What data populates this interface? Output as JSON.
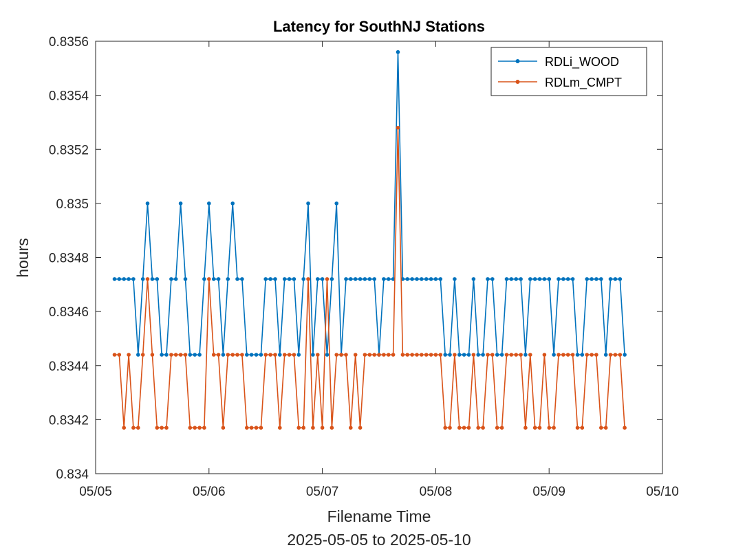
{
  "chart_data": {
    "type": "line",
    "title": "Latency for SouthNJ Stations",
    "xlabel": "Filename Time",
    "xlabel_sub": "2025-05-05 to 2025-05-10",
    "ylabel": "hours",
    "xlim": [
      0,
      5
    ],
    "ylim": [
      0.834,
      0.8356
    ],
    "x_ticks": [
      0,
      1,
      2,
      3,
      4,
      5
    ],
    "x_tick_labels": [
      "05/05",
      "05/06",
      "05/07",
      "05/08",
      "05/09",
      "05/10"
    ],
    "y_ticks": [
      0.834,
      0.8342,
      0.8344,
      0.8346,
      0.8348,
      0.835,
      0.8352,
      0.8354,
      0.8356
    ],
    "y_tick_labels": [
      "0.834",
      "0.8342",
      "0.8344",
      "0.8346",
      "0.8348",
      "0.835",
      "0.8352",
      "0.8354",
      "0.8356"
    ],
    "x_start": 0.1667,
    "x_step": 0.04167,
    "grid": false,
    "legend_position": "top-right",
    "series": [
      {
        "name": "RDLi_WOOD",
        "color": "#0072BD",
        "values": [
          0.83472,
          0.83472,
          0.83472,
          0.83472,
          0.83472,
          0.83444,
          0.83472,
          0.835,
          0.83472,
          0.83472,
          0.83444,
          0.83444,
          0.83472,
          0.83472,
          0.835,
          0.83472,
          0.83444,
          0.83444,
          0.83444,
          0.83472,
          0.835,
          0.83472,
          0.83472,
          0.83444,
          0.83472,
          0.835,
          0.83472,
          0.83472,
          0.83444,
          0.83444,
          0.83444,
          0.83444,
          0.83472,
          0.83472,
          0.83472,
          0.83444,
          0.83472,
          0.83472,
          0.83472,
          0.83444,
          0.83472,
          0.835,
          0.83444,
          0.83472,
          0.83472,
          0.83444,
          0.83472,
          0.835,
          0.83444,
          0.83472,
          0.83472,
          0.83472,
          0.83472,
          0.83472,
          0.83472,
          0.83472,
          0.83444,
          0.83472,
          0.83472,
          0.83472,
          0.83556,
          0.83472,
          0.83472,
          0.83472,
          0.83472,
          0.83472,
          0.83472,
          0.83472,
          0.83472,
          0.83472,
          0.83444,
          0.83444,
          0.83472,
          0.83444,
          0.83444,
          0.83444,
          0.83472,
          0.83444,
          0.83444,
          0.83472,
          0.83472,
          0.83444,
          0.83444,
          0.83472,
          0.83472,
          0.83472,
          0.83472,
          0.83444,
          0.83472,
          0.83472,
          0.83472,
          0.83472,
          0.83472,
          0.83444,
          0.83472,
          0.83472,
          0.83472,
          0.83472,
          0.83444,
          0.83444,
          0.83472,
          0.83472,
          0.83472,
          0.83472,
          0.83444,
          0.83472,
          0.83472,
          0.83472,
          0.83444
        ]
      },
      {
        "name": "RDLm_CMPT",
        "color": "#D95319",
        "values": [
          0.83444,
          0.83444,
          0.83417,
          0.83444,
          0.83417,
          0.83417,
          0.83444,
          0.83472,
          0.83444,
          0.83417,
          0.83417,
          0.83417,
          0.83444,
          0.83444,
          0.83444,
          0.83444,
          0.83417,
          0.83417,
          0.83417,
          0.83417,
          0.83472,
          0.83444,
          0.83444,
          0.83417,
          0.83444,
          0.83444,
          0.83444,
          0.83444,
          0.83417,
          0.83417,
          0.83417,
          0.83417,
          0.83444,
          0.83444,
          0.83444,
          0.83417,
          0.83444,
          0.83444,
          0.83444,
          0.83417,
          0.83417,
          0.83472,
          0.83417,
          0.83444,
          0.83417,
          0.83472,
          0.83417,
          0.83444,
          0.83444,
          0.83444,
          0.83417,
          0.83444,
          0.83417,
          0.83444,
          0.83444,
          0.83444,
          0.83444,
          0.83444,
          0.83444,
          0.83444,
          0.83528,
          0.83444,
          0.83444,
          0.83444,
          0.83444,
          0.83444,
          0.83444,
          0.83444,
          0.83444,
          0.83444,
          0.83417,
          0.83417,
          0.83444,
          0.83417,
          0.83417,
          0.83417,
          0.83444,
          0.83417,
          0.83417,
          0.83444,
          0.83444,
          0.83417,
          0.83417,
          0.83444,
          0.83444,
          0.83444,
          0.83444,
          0.83417,
          0.83444,
          0.83417,
          0.83417,
          0.83444,
          0.83417,
          0.83417,
          0.83444,
          0.83444,
          0.83444,
          0.83444,
          0.83417,
          0.83417,
          0.83444,
          0.83444,
          0.83444,
          0.83417,
          0.83417,
          0.83444,
          0.83444,
          0.83444,
          0.83417
        ]
      }
    ]
  }
}
